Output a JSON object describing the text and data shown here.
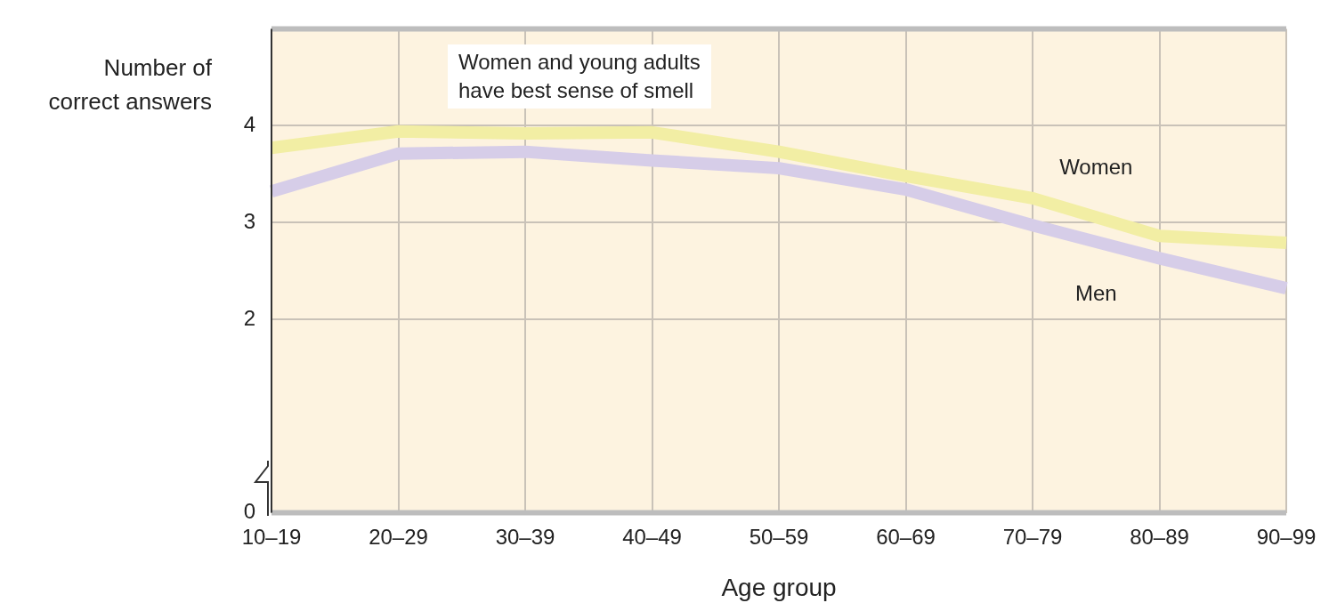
{
  "chart_data": {
    "type": "line",
    "xlabel": "Age group",
    "ylabel": "Number of\ncorrect answers",
    "annotations": [
      "Women and young adults\nhave best sense of smell"
    ],
    "categories": [
      "10–19",
      "20–29",
      "30–39",
      "40–49",
      "50–59",
      "60–69",
      "70–79",
      "80–89",
      "90–99"
    ],
    "series": [
      {
        "name": "Women",
        "color": "#f2eea4",
        "values": [
          3.77,
          3.94,
          3.92,
          3.93,
          3.73,
          3.48,
          3.25,
          2.86,
          2.79
        ]
      },
      {
        "name": "Men",
        "color": "#d6cde8",
        "values": [
          3.32,
          3.71,
          3.73,
          3.64,
          3.56,
          3.34,
          2.97,
          2.63,
          2.32
        ]
      }
    ],
    "ylim": [
      0,
      5
    ],
    "yticks": [
      0,
      2,
      3,
      4
    ],
    "grid": true,
    "legend": false,
    "marker": "none",
    "line_style": "solid"
  }
}
